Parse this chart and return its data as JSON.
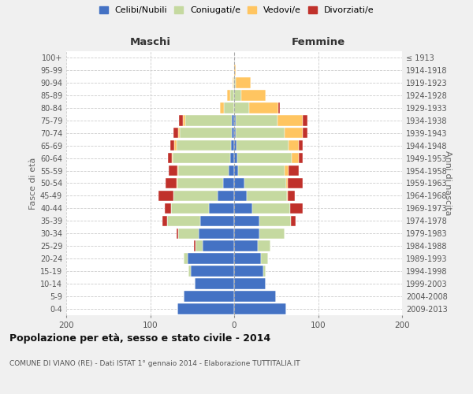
{
  "age_groups": [
    "0-4",
    "5-9",
    "10-14",
    "15-19",
    "20-24",
    "25-29",
    "30-34",
    "35-39",
    "40-44",
    "45-49",
    "50-54",
    "55-59",
    "60-64",
    "65-69",
    "70-74",
    "75-79",
    "80-84",
    "85-89",
    "90-94",
    "95-99",
    "100+"
  ],
  "birth_years": [
    "2009-2013",
    "2004-2008",
    "1999-2003",
    "1994-1998",
    "1989-1993",
    "1984-1988",
    "1979-1983",
    "1974-1978",
    "1969-1973",
    "1964-1968",
    "1959-1963",
    "1954-1958",
    "1949-1953",
    "1944-1948",
    "1939-1943",
    "1934-1938",
    "1929-1933",
    "1924-1928",
    "1919-1923",
    "1914-1918",
    "≤ 1913"
  ],
  "maschi": {
    "celibi": [
      68,
      60,
      47,
      52,
      55,
      38,
      42,
      40,
      30,
      20,
      13,
      7,
      5,
      4,
      3,
      3,
      0,
      0,
      0,
      0,
      0
    ],
    "coniugati": [
      0,
      0,
      0,
      2,
      5,
      8,
      25,
      40,
      45,
      52,
      55,
      60,
      68,
      65,
      62,
      55,
      12,
      5,
      1,
      0,
      0
    ],
    "vedovi": [
      0,
      0,
      0,
      0,
      0,
      0,
      0,
      0,
      0,
      0,
      1,
      1,
      1,
      2,
      2,
      3,
      5,
      3,
      1,
      0,
      0
    ],
    "divorziati": [
      0,
      0,
      0,
      0,
      0,
      2,
      2,
      5,
      8,
      18,
      13,
      10,
      5,
      5,
      5,
      5,
      0,
      0,
      0,
      0,
      0
    ]
  },
  "femmine": {
    "nubili": [
      62,
      50,
      38,
      35,
      32,
      28,
      30,
      30,
      22,
      15,
      12,
      5,
      4,
      3,
      2,
      2,
      0,
      0,
      0,
      0,
      0
    ],
    "coniugate": [
      0,
      0,
      0,
      3,
      8,
      15,
      30,
      38,
      45,
      48,
      50,
      55,
      65,
      62,
      58,
      50,
      18,
      8,
      2,
      0,
      0
    ],
    "vedove": [
      0,
      0,
      0,
      0,
      0,
      0,
      0,
      0,
      0,
      1,
      2,
      5,
      8,
      12,
      22,
      30,
      35,
      30,
      18,
      2,
      0
    ],
    "divorziate": [
      0,
      0,
      0,
      0,
      0,
      0,
      0,
      5,
      15,
      8,
      18,
      12,
      5,
      5,
      5,
      5,
      1,
      0,
      0,
      0,
      0
    ]
  },
  "colors": {
    "celibi": "#4472c4",
    "coniugati": "#c5d9a0",
    "vedovi": "#ffc561",
    "divorziati": "#c0312b"
  },
  "legend_labels": [
    "Celibi/Nubili",
    "Coniugati/e",
    "Vedovi/e",
    "Divorziati/e"
  ],
  "title1": "Popolazione per età, sesso e stato civile - 2014",
  "title2": "COMUNE DI VIANO (RE) - Dati ISTAT 1° gennaio 2014 - Elaborazione TUTTITALIA.IT",
  "xlabel_left": "Maschi",
  "xlabel_right": "Femmine",
  "ylabel_left": "Fasce di età",
  "ylabel_right": "Anni di nascita",
  "xlim": 200,
  "bg_color": "#f0f0f0",
  "plot_bg": "#ffffff"
}
